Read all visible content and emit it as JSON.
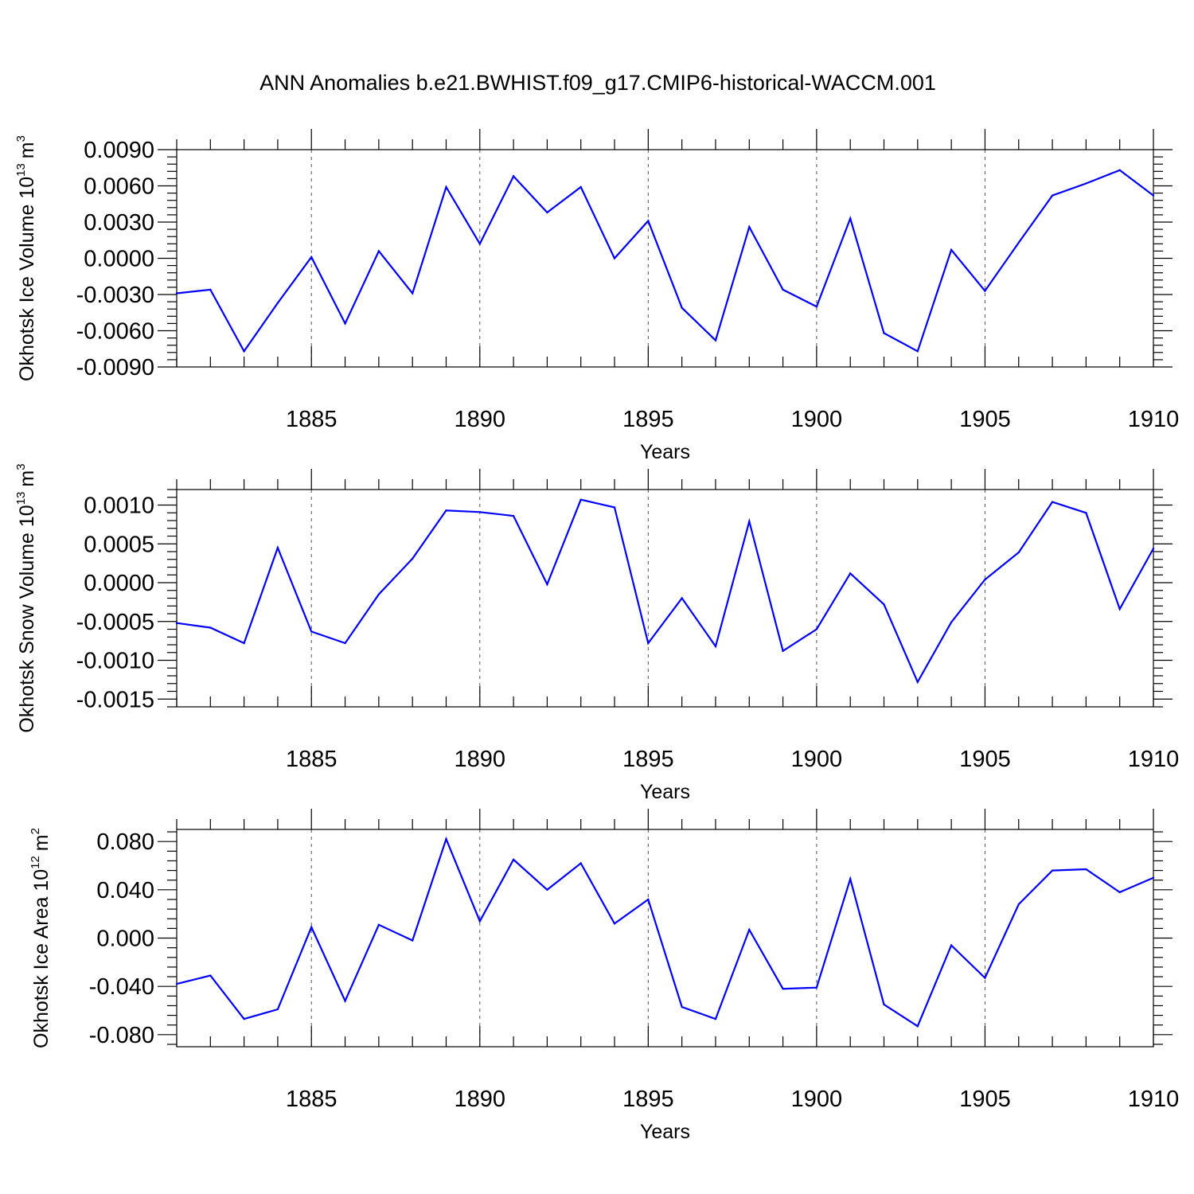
{
  "title": "ANN Anomalies b.e21.BWHIST.f09_g17.CMIP6-historical-WACCM.001",
  "colors": {
    "series": "#0000ff",
    "axis": "#000000",
    "grid": "#555555"
  },
  "chart_data": [
    {
      "type": "line",
      "ylabel": {
        "text": "Okhotsk Ice Volume 10",
        "exp": "13",
        "unit": "m",
        "unit_exp": "3"
      },
      "xlabel": "Years",
      "xlim": [
        1881,
        1910
      ],
      "ylim": [
        -0.009,
        0.009
      ],
      "yticks": [
        -0.009,
        -0.006,
        -0.003,
        0.0,
        0.003,
        0.006,
        0.009
      ],
      "ytick_labels": [
        "-0.0090",
        "-0.0060",
        "-0.0030",
        "0.0000",
        "0.0030",
        "0.0060",
        "0.0090"
      ],
      "yminor_step": 0.0006,
      "xticks": [
        1885,
        1890,
        1895,
        1900,
        1905,
        1910
      ],
      "xtick_labels": [
        "1885",
        "1890",
        "1895",
        "1900",
        "1905",
        "1910"
      ],
      "grid": "dashed vertical at major x ticks",
      "x": [
        1881,
        1882,
        1883,
        1884,
        1885,
        1886,
        1887,
        1888,
        1889,
        1890,
        1891,
        1892,
        1893,
        1894,
        1895,
        1896,
        1897,
        1898,
        1899,
        1900,
        1901,
        1902,
        1903,
        1904,
        1905,
        1906,
        1907,
        1908,
        1909,
        1910
      ],
      "values": [
        -0.0029,
        -0.0026,
        -0.0077,
        -0.0037,
        0.0001,
        -0.0054,
        0.0006,
        -0.0029,
        0.0059,
        0.0012,
        0.0068,
        0.0038,
        0.0059,
        0.0,
        0.0031,
        -0.0041,
        -0.0068,
        0.0026,
        -0.0026,
        -0.004,
        0.0033,
        -0.0062,
        -0.0077,
        0.0007,
        -0.0027,
        0.0013,
        0.0052,
        0.0062,
        0.0073,
        0.0052
      ]
    },
    {
      "type": "line",
      "ylabel": {
        "text": "Okhotsk Snow Volume 10",
        "exp": "13",
        "unit": "m",
        "unit_exp": "3"
      },
      "xlabel": "Years",
      "xlim": [
        1881,
        1910
      ],
      "ylim": [
        -0.0016,
        0.0012
      ],
      "yticks": [
        -0.0015,
        -0.001,
        -0.0005,
        0.0,
        0.0005,
        0.001
      ],
      "ytick_labels": [
        "-0.0015",
        "-0.0010",
        "-0.0005",
        "0.0000",
        "0.0005",
        "0.0010"
      ],
      "yminor_step": 0.0001,
      "xticks": [
        1885,
        1890,
        1895,
        1900,
        1905,
        1910
      ],
      "xtick_labels": [
        "1885",
        "1890",
        "1895",
        "1900",
        "1905",
        "1910"
      ],
      "grid": "dashed vertical at major x ticks",
      "x": [
        1881,
        1882,
        1883,
        1884,
        1885,
        1886,
        1887,
        1888,
        1889,
        1890,
        1891,
        1892,
        1893,
        1894,
        1895,
        1896,
        1897,
        1898,
        1899,
        1900,
        1901,
        1902,
        1903,
        1904,
        1905,
        1906,
        1907,
        1908,
        1909,
        1910
      ],
      "values": [
        -0.00052,
        -0.00058,
        -0.00078,
        0.00045,
        -0.00063,
        -0.00078,
        -0.00015,
        0.00031,
        0.00093,
        0.00091,
        0.00086,
        -2e-05,
        0.00107,
        0.00097,
        -0.00078,
        -0.0002,
        -0.00082,
        0.00079,
        -0.00088,
        -0.0006,
        0.00012,
        -0.00028,
        -0.00128,
        -0.00051,
        4e-05,
        0.00039,
        0.00104,
        0.0009,
        -0.00034,
        0.00044
      ]
    },
    {
      "type": "line",
      "ylabel": {
        "text": "Okhotsk Ice Area 10",
        "exp": "12",
        "unit": "m",
        "unit_exp": "2"
      },
      "xlabel": "Years",
      "xlim": [
        1881,
        1910
      ],
      "ylim": [
        -0.09,
        0.09
      ],
      "yticks": [
        -0.08,
        -0.04,
        0.0,
        0.04,
        0.08
      ],
      "ytick_labels": [
        "-0.080",
        "-0.040",
        "0.000",
        "0.040",
        "0.080"
      ],
      "yminor_step": 0.008,
      "xticks": [
        1885,
        1890,
        1895,
        1900,
        1905,
        1910
      ],
      "xtick_labels": [
        "1885",
        "1890",
        "1895",
        "1900",
        "1905",
        "1910"
      ],
      "grid": "dashed vertical at major x ticks",
      "x": [
        1881,
        1882,
        1883,
        1884,
        1885,
        1886,
        1887,
        1888,
        1889,
        1890,
        1891,
        1892,
        1893,
        1894,
        1895,
        1896,
        1897,
        1898,
        1899,
        1900,
        1901,
        1902,
        1903,
        1904,
        1905,
        1906,
        1907,
        1908,
        1909,
        1910
      ],
      "values": [
        -0.038,
        -0.031,
        -0.067,
        -0.059,
        0.009,
        -0.052,
        0.011,
        -0.002,
        0.082,
        0.014,
        0.065,
        0.04,
        0.062,
        0.012,
        0.032,
        -0.057,
        -0.067,
        0.007,
        -0.042,
        -0.041,
        0.049,
        -0.055,
        -0.073,
        -0.006,
        -0.033,
        0.028,
        0.056,
        0.057,
        0.038,
        0.05
      ]
    }
  ]
}
